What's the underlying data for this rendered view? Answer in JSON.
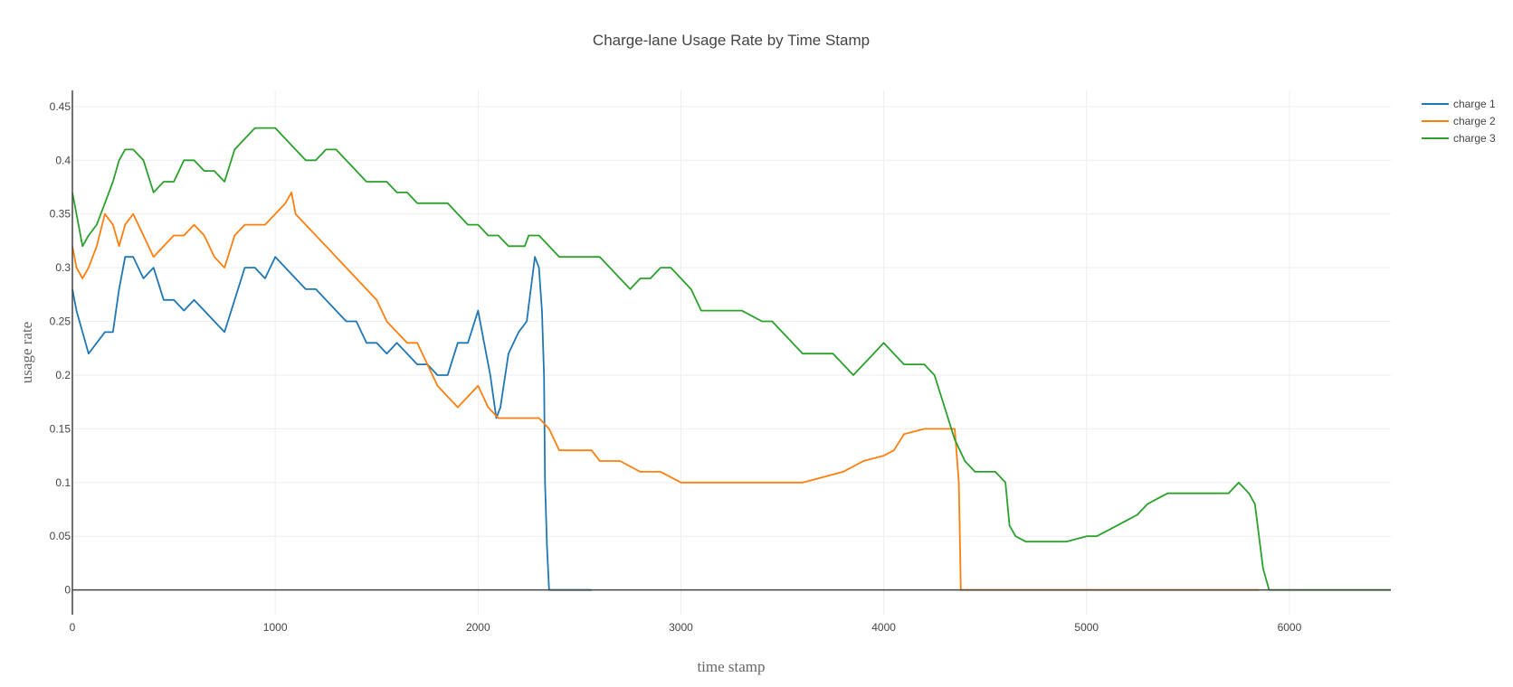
{
  "chart_data": {
    "type": "line",
    "title": "Charge-lane Usage Rate by Time Stamp",
    "xlabel": "time stamp",
    "ylabel": "usage rate",
    "xlim": [
      0,
      6500
    ],
    "ylim": [
      -0.023,
      0.465
    ],
    "x_ticks": [
      0,
      1000,
      2000,
      3000,
      4000,
      5000,
      6000
    ],
    "y_ticks": [
      0,
      0.05,
      0.1,
      0.15,
      0.2,
      0.25,
      0.3,
      0.35,
      0.4,
      0.45
    ],
    "x_tick_labels": [
      "0",
      "1000",
      "2000",
      "3000",
      "4000",
      "5000",
      "6000"
    ],
    "y_tick_labels": [
      "0",
      "0.05",
      "0.1",
      "0.15",
      "0.2",
      "0.25",
      "0.3",
      "0.35",
      "0.4",
      "0.45"
    ],
    "grid": true,
    "legend_position": "top-right",
    "series": [
      {
        "name": "charge 1",
        "color": "#1f77b4",
        "x": [
          0,
          20,
          50,
          80,
          120,
          160,
          200,
          230,
          260,
          300,
          350,
          400,
          450,
          500,
          550,
          600,
          650,
          700,
          750,
          800,
          850,
          900,
          950,
          1000,
          1050,
          1100,
          1150,
          1200,
          1250,
          1300,
          1350,
          1400,
          1450,
          1500,
          1550,
          1600,
          1650,
          1700,
          1750,
          1800,
          1850,
          1900,
          1950,
          2000,
          2030,
          2060,
          2090,
          2110,
          2150,
          2200,
          2240,
          2260,
          2280,
          2300,
          2315,
          2325,
          2330,
          2340,
          2350,
          2400,
          2560
        ],
        "y": [
          0.28,
          0.26,
          0.24,
          0.22,
          0.23,
          0.24,
          0.24,
          0.28,
          0.31,
          0.31,
          0.29,
          0.3,
          0.27,
          0.27,
          0.26,
          0.27,
          0.26,
          0.25,
          0.24,
          0.27,
          0.3,
          0.3,
          0.29,
          0.31,
          0.3,
          0.29,
          0.28,
          0.28,
          0.27,
          0.26,
          0.25,
          0.25,
          0.23,
          0.23,
          0.22,
          0.23,
          0.22,
          0.21,
          0.21,
          0.2,
          0.2,
          0.23,
          0.23,
          0.26,
          0.23,
          0.2,
          0.16,
          0.17,
          0.22,
          0.24,
          0.25,
          0.28,
          0.31,
          0.3,
          0.26,
          0.2,
          0.1,
          0.04,
          0,
          0,
          0
        ]
      },
      {
        "name": "charge 2",
        "color": "#ff7f0e",
        "x": [
          0,
          20,
          50,
          80,
          120,
          160,
          200,
          230,
          260,
          300,
          350,
          400,
          450,
          500,
          550,
          600,
          650,
          700,
          750,
          800,
          850,
          900,
          950,
          1000,
          1050,
          1080,
          1100,
          1150,
          1200,
          1250,
          1300,
          1350,
          1400,
          1450,
          1500,
          1550,
          1600,
          1650,
          1700,
          1750,
          1800,
          1850,
          1900,
          1950,
          2000,
          2050,
          2100,
          2150,
          2200,
          2250,
          2300,
          2350,
          2400,
          2450,
          2500,
          2560,
          2600,
          2700,
          2800,
          2900,
          3000,
          3100,
          3200,
          3400,
          3600,
          3700,
          3800,
          3900,
          4000,
          4050,
          4100,
          4200,
          4300,
          4350,
          4370,
          4380,
          4400,
          5000,
          5850
        ],
        "y": [
          0.32,
          0.3,
          0.29,
          0.3,
          0.32,
          0.35,
          0.34,
          0.32,
          0.34,
          0.35,
          0.33,
          0.31,
          0.32,
          0.33,
          0.33,
          0.34,
          0.33,
          0.31,
          0.3,
          0.33,
          0.34,
          0.34,
          0.34,
          0.35,
          0.36,
          0.37,
          0.35,
          0.34,
          0.33,
          0.32,
          0.31,
          0.3,
          0.29,
          0.28,
          0.27,
          0.25,
          0.24,
          0.23,
          0.23,
          0.21,
          0.19,
          0.18,
          0.17,
          0.18,
          0.19,
          0.17,
          0.16,
          0.16,
          0.16,
          0.16,
          0.16,
          0.15,
          0.13,
          0.13,
          0.13,
          0.13,
          0.12,
          0.12,
          0.11,
          0.11,
          0.1,
          0.1,
          0.1,
          0.1,
          0.1,
          0.105,
          0.11,
          0.12,
          0.125,
          0.13,
          0.145,
          0.15,
          0.15,
          0.15,
          0.1,
          0,
          0,
          0,
          0
        ]
      },
      {
        "name": "charge 3",
        "color": "#2ca02c",
        "x": [
          0,
          20,
          50,
          80,
          120,
          160,
          200,
          230,
          260,
          300,
          350,
          400,
          450,
          500,
          550,
          600,
          650,
          700,
          750,
          800,
          850,
          900,
          950,
          1000,
          1050,
          1100,
          1150,
          1200,
          1250,
          1300,
          1350,
          1400,
          1450,
          1500,
          1550,
          1600,
          1650,
          1700,
          1750,
          1800,
          1850,
          1900,
          1950,
          2000,
          2050,
          2100,
          2150,
          2200,
          2230,
          2250,
          2300,
          2350,
          2400,
          2450,
          2500,
          2550,
          2600,
          2650,
          2700,
          2750,
          2800,
          2850,
          2900,
          2950,
          3000,
          3050,
          3100,
          3200,
          3300,
          3400,
          3450,
          3500,
          3550,
          3600,
          3650,
          3700,
          3750,
          3800,
          3850,
          3900,
          3950,
          4000,
          4050,
          4100,
          4150,
          4200,
          4250,
          4300,
          4350,
          4400,
          4450,
          4500,
          4550,
          4600,
          4620,
          4650,
          4700,
          4800,
          4900,
          5000,
          5050,
          5100,
          5150,
          5200,
          5250,
          5300,
          5350,
          5400,
          5500,
          5550,
          5600,
          5650,
          5700,
          5750,
          5800,
          5830,
          5850,
          5870,
          5900,
          6000,
          6500
        ],
        "y": [
          0.37,
          0.35,
          0.32,
          0.33,
          0.34,
          0.36,
          0.38,
          0.4,
          0.41,
          0.41,
          0.4,
          0.37,
          0.38,
          0.38,
          0.4,
          0.4,
          0.39,
          0.39,
          0.38,
          0.41,
          0.42,
          0.43,
          0.43,
          0.43,
          0.42,
          0.41,
          0.4,
          0.4,
          0.41,
          0.41,
          0.4,
          0.39,
          0.38,
          0.38,
          0.38,
          0.37,
          0.37,
          0.36,
          0.36,
          0.36,
          0.36,
          0.35,
          0.34,
          0.34,
          0.33,
          0.33,
          0.32,
          0.32,
          0.32,
          0.33,
          0.33,
          0.32,
          0.31,
          0.31,
          0.31,
          0.31,
          0.31,
          0.3,
          0.29,
          0.28,
          0.29,
          0.29,
          0.3,
          0.3,
          0.29,
          0.28,
          0.26,
          0.26,
          0.26,
          0.25,
          0.25,
          0.24,
          0.23,
          0.22,
          0.22,
          0.22,
          0.22,
          0.21,
          0.2,
          0.21,
          0.22,
          0.23,
          0.22,
          0.21,
          0.21,
          0.21,
          0.2,
          0.17,
          0.14,
          0.12,
          0.11,
          0.11,
          0.11,
          0.1,
          0.06,
          0.05,
          0.045,
          0.045,
          0.045,
          0.05,
          0.05,
          0.055,
          0.06,
          0.065,
          0.07,
          0.08,
          0.085,
          0.09,
          0.09,
          0.09,
          0.09,
          0.09,
          0.09,
          0.1,
          0.09,
          0.08,
          0.05,
          0.02,
          0,
          0,
          0
        ]
      }
    ]
  }
}
